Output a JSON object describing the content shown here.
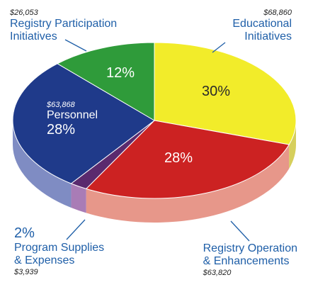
{
  "chart_data": {
    "type": "pie",
    "title": "",
    "series": [
      {
        "name": "",
        "slices": [
          {
            "label": "Educational Initiatives",
            "amount": "$68,860",
            "percent": 30,
            "color": "#f2ec2a",
            "side": "#d6cf5c"
          },
          {
            "label": "Registry Operation & Enhancements",
            "amount": "$63,820",
            "percent": 28,
            "color": "#cc2222",
            "side": "#e7978a"
          },
          {
            "label": "Program Supplies & Expenses",
            "amount": "$3,939",
            "percent": 2,
            "color": "#5a2a6e",
            "side": "#a97cb6"
          },
          {
            "label": "Personnel",
            "amount": "$63,868",
            "percent": 28,
            "color": "#1f3a8a",
            "side": "#7f8cc3"
          },
          {
            "label": "Registry Participation Initiatives",
            "amount": "$26,053",
            "percent": 12,
            "color": "#2f9b3a",
            "side": "#7fbf7e"
          }
        ]
      }
    ]
  },
  "labels": {
    "registry_participation": {
      "amount": "$26,053",
      "line1": "Registry Participation",
      "line2": "Initiatives"
    },
    "educational": {
      "amount": "$68,860",
      "line1": "Educational",
      "line2": "Initiatives"
    },
    "personnel": {
      "amount": "$63,868",
      "name": "Personnel",
      "pct": "28%"
    },
    "program_supplies": {
      "pct": "2%",
      "line1": "Program Supplies",
      "line2": "& Expenses",
      "amount": "$3,939"
    },
    "registry_operation": {
      "line1": "Registry Operation",
      "line2": "& Enhancements",
      "amount": "$63,820"
    },
    "inside": {
      "educational_pct": "30%",
      "operation_pct": "28%",
      "participation_pct": "12%"
    }
  }
}
